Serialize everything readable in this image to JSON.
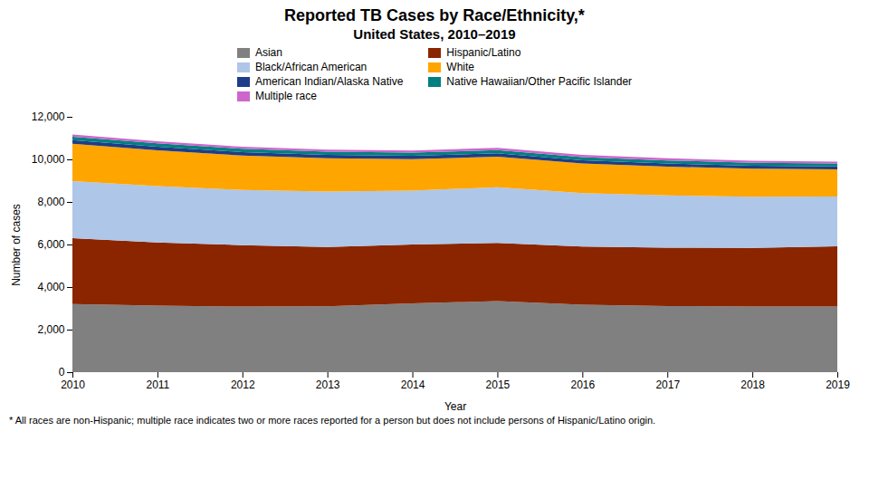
{
  "chart_data": {
    "type": "area",
    "stacked": true,
    "title": "Reported TB Cases by Race/Ethnicity,*",
    "subtitle": "United States, 2010–2019",
    "xlabel": "Year",
    "ylabel": "Number of cases",
    "footnote": "* All races are non-Hispanic; multiple race indicates two or more races reported for a person but does not include persons of Hispanic/Latino origin.",
    "x": [
      2010,
      2011,
      2012,
      2013,
      2014,
      2015,
      2016,
      2017,
      2018,
      2019
    ],
    "xlim": [
      2010,
      2019
    ],
    "xticks": [
      2010,
      2011,
      2012,
      2013,
      2014,
      2015,
      2016,
      2017,
      2018,
      2019
    ],
    "ylim": [
      0,
      12000
    ],
    "yticks": [
      0,
      {
        "value": 2000,
        "label": "2,000"
      },
      {
        "value": 4000,
        "label": "4,000"
      },
      {
        "value": 6000,
        "label": "6,000"
      },
      {
        "value": 8000,
        "label": "8,000"
      },
      {
        "value": 10000,
        "label": "10,000"
      },
      {
        "value": 12000,
        "label": "12,000"
      }
    ],
    "grid": false,
    "legend": "top",
    "series": [
      {
        "name": "Asian",
        "color": "#808080",
        "values": [
          3200,
          3130,
          3080,
          3100,
          3230,
          3340,
          3170,
          3110,
          3080,
          3080
        ]
      },
      {
        "name": "Hispanic/Latino",
        "color": "#8B2500",
        "values": [
          3100,
          2970,
          2890,
          2780,
          2770,
          2730,
          2730,
          2740,
          2760,
          2840
        ]
      },
      {
        "name": "Black/African American",
        "color": "#aec6e8",
        "values": [
          2680,
          2650,
          2590,
          2610,
          2530,
          2620,
          2520,
          2460,
          2400,
          2340
        ]
      },
      {
        "name": "White",
        "color": "#FFA500",
        "values": [
          1750,
          1680,
          1620,
          1560,
          1480,
          1440,
          1390,
          1350,
          1320,
          1270
        ]
      },
      {
        "name": "American Indian/Alaska Native",
        "color": "#1f3c88",
        "values": [
          175,
          170,
          165,
          160,
          158,
          155,
          150,
          148,
          145,
          140
        ]
      },
      {
        "name": "Native Hawaiian/Other Pacific Islander",
        "color": "#008080",
        "values": [
          160,
          155,
          152,
          148,
          148,
          150,
          148,
          144,
          140,
          135
        ]
      },
      {
        "name": "Multiple race",
        "color": "#cc66cc",
        "values": [
          100,
          100,
          97,
          95,
          100,
          105,
          102,
          98,
          92,
          88
        ]
      }
    ]
  }
}
